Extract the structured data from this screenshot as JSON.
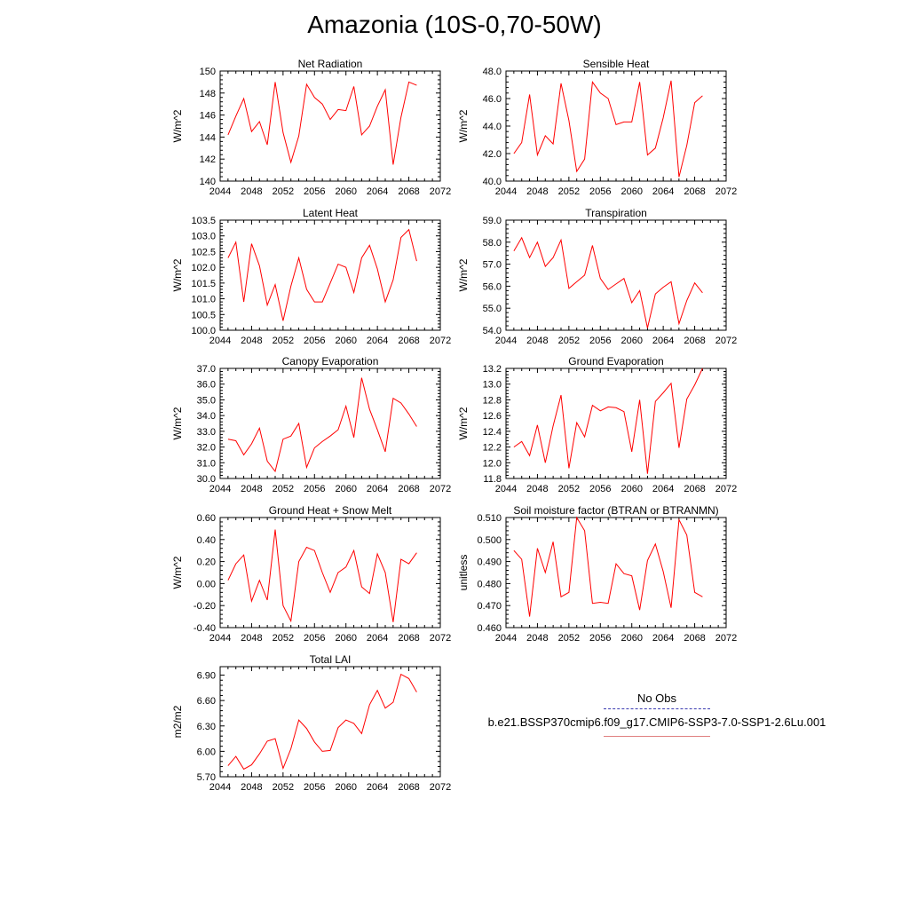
{
  "title": "Amazonia (10S-0,70-50W)",
  "x_ticks": [
    "2044",
    "2048",
    "2052",
    "2056",
    "2060",
    "2064",
    "2068",
    "2072"
  ],
  "series_color": "#ff0000",
  "legend": {
    "obs_label": "No Obs",
    "obs_color": "#3a3ab0",
    "model_label": "b.e21.BSSP370cmip6.f09_g17.CMIP6-SSP3-7.0-SSP1-2.6Lu.001",
    "model_color": "#e08080"
  },
  "chart_data": [
    {
      "type": "line",
      "title": "Net Radiation",
      "ylabel": "W/m^2",
      "xlim": [
        2044,
        2072
      ],
      "ylim": [
        140,
        150
      ],
      "yticks": [
        "140",
        "142",
        "144",
        "146",
        "148",
        "150"
      ],
      "x": [
        2045,
        2046,
        2047,
        2048,
        2049,
        2050,
        2051,
        2052,
        2053,
        2054,
        2055,
        2056,
        2057,
        2058,
        2059,
        2060,
        2061,
        2062,
        2063,
        2064,
        2065,
        2066,
        2067,
        2068,
        2069
      ],
      "values": [
        144.2,
        145.9,
        147.5,
        144.5,
        145.4,
        143.3,
        149.0,
        144.4,
        141.7,
        144.1,
        148.8,
        147.6,
        147.0,
        145.6,
        146.5,
        146.4,
        148.6,
        144.2,
        145.0,
        146.8,
        148.3,
        141.5,
        145.8,
        149.0,
        148.7
      ]
    },
    {
      "type": "line",
      "title": "Sensible Heat",
      "ylabel": "W/m^2",
      "xlim": [
        2044,
        2072
      ],
      "ylim": [
        40,
        48
      ],
      "yticks": [
        "40.0",
        "42.0",
        "44.0",
        "46.0",
        "48.0"
      ],
      "x": [
        2045,
        2046,
        2047,
        2048,
        2049,
        2050,
        2051,
        2052,
        2053,
        2054,
        2055,
        2056,
        2057,
        2058,
        2059,
        2060,
        2061,
        2062,
        2063,
        2064,
        2065,
        2066,
        2067,
        2068,
        2069
      ],
      "values": [
        42.0,
        42.8,
        46.3,
        41.9,
        43.3,
        42.7,
        47.1,
        44.4,
        40.7,
        41.6,
        47.2,
        46.4,
        46.0,
        44.1,
        44.3,
        44.3,
        47.2,
        41.9,
        42.4,
        44.6,
        47.3,
        40.3,
        42.6,
        45.7,
        46.2
      ]
    },
    {
      "type": "line",
      "title": "Latent Heat",
      "ylabel": "W/m^2",
      "xlim": [
        2044,
        2072
      ],
      "ylim": [
        100,
        103.5
      ],
      "yticks": [
        "100.0",
        "100.5",
        "101.0",
        "101.5",
        "102.0",
        "102.5",
        "103.0",
        "103.5"
      ],
      "x": [
        2045,
        2046,
        2047,
        2048,
        2049,
        2050,
        2051,
        2052,
        2053,
        2054,
        2055,
        2056,
        2057,
        2058,
        2059,
        2060,
        2061,
        2062,
        2063,
        2064,
        2065,
        2066,
        2067,
        2068,
        2069
      ],
      "values": [
        102.3,
        102.8,
        100.9,
        102.75,
        102.05,
        100.8,
        101.45,
        100.3,
        101.4,
        102.3,
        101.3,
        100.9,
        100.9,
        101.5,
        102.1,
        102.0,
        101.2,
        102.3,
        102.7,
        101.95,
        100.9,
        101.6,
        102.95,
        103.2,
        102.2
      ]
    },
    {
      "type": "line",
      "title": "Transpiration",
      "ylabel": "W/m^2",
      "xlim": [
        2044,
        2072
      ],
      "ylim": [
        54,
        59
      ],
      "yticks": [
        "54.0",
        "55.0",
        "56.0",
        "57.0",
        "58.0",
        "59.0"
      ],
      "x": [
        2045,
        2046,
        2047,
        2048,
        2049,
        2050,
        2051,
        2052,
        2053,
        2054,
        2055,
        2056,
        2057,
        2058,
        2059,
        2060,
        2061,
        2062,
        2063,
        2064,
        2065,
        2066,
        2067,
        2068,
        2069
      ],
      "values": [
        57.6,
        58.2,
        57.3,
        58.0,
        56.9,
        57.3,
        58.1,
        55.9,
        56.2,
        56.5,
        57.85,
        56.35,
        55.85,
        56.1,
        56.35,
        55.25,
        55.8,
        54.1,
        55.65,
        55.95,
        56.2,
        54.3,
        55.35,
        56.15,
        55.7
      ]
    },
    {
      "type": "line",
      "title": "Canopy Evaporation",
      "ylabel": "W/m^2",
      "xlim": [
        2044,
        2072
      ],
      "ylim": [
        30,
        37
      ],
      "yticks": [
        "30.0",
        "31.0",
        "32.0",
        "33.0",
        "34.0",
        "35.0",
        "36.0",
        "37.0"
      ],
      "x": [
        2045,
        2046,
        2047,
        2048,
        2049,
        2050,
        2051,
        2052,
        2053,
        2054,
        2055,
        2056,
        2057,
        2058,
        2059,
        2060,
        2061,
        2062,
        2063,
        2064,
        2065,
        2066,
        2067,
        2068,
        2069
      ],
      "values": [
        32.5,
        32.4,
        31.5,
        32.2,
        33.2,
        31.1,
        30.45,
        32.5,
        32.7,
        33.5,
        30.7,
        31.95,
        32.35,
        32.7,
        33.1,
        34.6,
        32.6,
        36.4,
        34.4,
        33.1,
        31.7,
        35.1,
        34.8,
        34.1,
        33.3
      ]
    },
    {
      "type": "line",
      "title": "Ground Evaporation",
      "ylabel": "W/m^2",
      "xlim": [
        2044,
        2072
      ],
      "ylim": [
        11.8,
        13.2
      ],
      "yticks": [
        "11.8",
        "12.0",
        "12.2",
        "12.4",
        "12.6",
        "12.8",
        "13.0",
        "13.2"
      ],
      "x": [
        2045,
        2046,
        2047,
        2048,
        2049,
        2050,
        2051,
        2052,
        2053,
        2054,
        2055,
        2056,
        2057,
        2058,
        2059,
        2060,
        2061,
        2062,
        2063,
        2064,
        2065,
        2066,
        2067,
        2068,
        2069
      ],
      "values": [
        12.2,
        12.27,
        12.09,
        12.48,
        12.0,
        12.47,
        12.86,
        11.93,
        12.51,
        12.33,
        12.73,
        12.66,
        12.71,
        12.7,
        12.65,
        12.14,
        12.8,
        11.86,
        12.78,
        12.89,
        13.01,
        12.19,
        12.81,
        12.99,
        13.2
      ]
    },
    {
      "type": "line",
      "title": "Ground Heat + Snow Melt",
      "ylabel": "W/m^2",
      "xlim": [
        2044,
        2072
      ],
      "ylim": [
        -0.4,
        0.6
      ],
      "yticks": [
        "-0.40",
        "-0.20",
        "0.00",
        "0.20",
        "0.40",
        "0.60"
      ],
      "x": [
        2045,
        2046,
        2047,
        2048,
        2049,
        2050,
        2051,
        2052,
        2053,
        2054,
        2055,
        2056,
        2057,
        2058,
        2059,
        2060,
        2061,
        2062,
        2063,
        2064,
        2065,
        2066,
        2067,
        2068,
        2069
      ],
      "values": [
        0.03,
        0.18,
        0.26,
        -0.16,
        0.03,
        -0.15,
        0.49,
        -0.2,
        -0.34,
        0.2,
        0.33,
        0.3,
        0.1,
        -0.08,
        0.1,
        0.15,
        0.3,
        -0.03,
        -0.09,
        0.27,
        0.1,
        -0.35,
        0.22,
        0.18,
        0.28
      ]
    },
    {
      "type": "line",
      "title": "Soil moisture factor (BTRAN or BTRANMN)",
      "ylabel": "unitless",
      "xlim": [
        2044,
        2072
      ],
      "ylim": [
        0.46,
        0.51
      ],
      "yticks": [
        "0.460",
        "0.470",
        "0.480",
        "0.490",
        "0.500",
        "0.510"
      ],
      "x": [
        2045,
        2046,
        2047,
        2048,
        2049,
        2050,
        2051,
        2052,
        2053,
        2054,
        2055,
        2056,
        2057,
        2058,
        2059,
        2060,
        2061,
        2062,
        2063,
        2064,
        2065,
        2066,
        2067,
        2068,
        2069
      ],
      "values": [
        0.495,
        0.491,
        0.465,
        0.496,
        0.485,
        0.499,
        0.474,
        0.476,
        0.51,
        0.504,
        0.471,
        0.4715,
        0.471,
        0.489,
        0.4845,
        0.4835,
        0.468,
        0.4905,
        0.498,
        0.4855,
        0.469,
        0.509,
        0.502,
        0.476,
        0.474
      ]
    },
    {
      "type": "line",
      "title": "Total LAI",
      "ylabel": "m2/m2",
      "xlim": [
        2044,
        2072
      ],
      "ylim": [
        5.7,
        7.0
      ],
      "yticks": [
        "5.70",
        "6.00",
        "6.30",
        "6.60",
        "6.90"
      ],
      "x": [
        2045,
        2046,
        2047,
        2048,
        2049,
        2050,
        2051,
        2052,
        2053,
        2054,
        2055,
        2056,
        2057,
        2058,
        2059,
        2060,
        2061,
        2062,
        2063,
        2064,
        2065,
        2066,
        2067,
        2068,
        2069
      ],
      "values": [
        5.83,
        5.94,
        5.79,
        5.84,
        5.97,
        6.12,
        6.15,
        5.8,
        6.03,
        6.37,
        6.27,
        6.11,
        6.0,
        6.01,
        6.28,
        6.37,
        6.33,
        6.21,
        6.55,
        6.72,
        6.51,
        6.58,
        6.91,
        6.86,
        6.7
      ]
    }
  ]
}
